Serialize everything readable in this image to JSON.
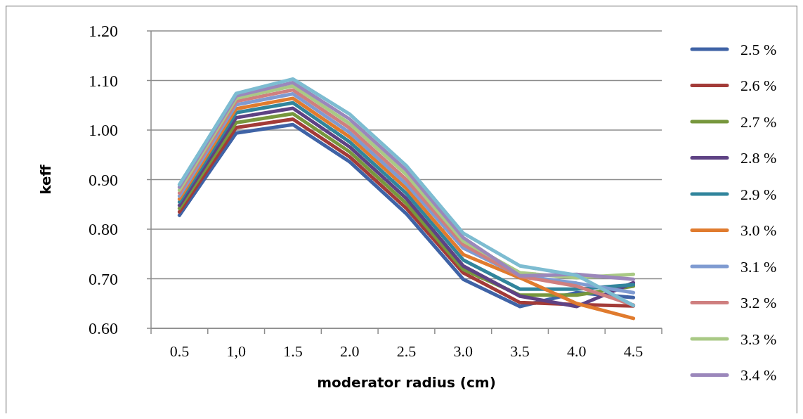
{
  "chart_data": {
    "type": "line",
    "xlabel": "moderator radius (cm)",
    "ylabel": "keff",
    "categories": [
      "0.5",
      "1,0",
      "1.5",
      "2.0",
      "2.5",
      "3.0",
      "3.5",
      "4.0",
      "4.5"
    ],
    "ylim": [
      0.6,
      1.2
    ],
    "yticks": [
      {
        "value": 0.6,
        "label": "0.60"
      },
      {
        "value": 0.7,
        "label": "0.70"
      },
      {
        "value": 0.8,
        "label": "0.80"
      },
      {
        "value": 0.9,
        "label": "0.90"
      },
      {
        "value": 1.0,
        "label": "1.00"
      },
      {
        "value": 1.1,
        "label": "1.10"
      },
      {
        "value": 1.2,
        "label": "1.20"
      }
    ],
    "grid": "y",
    "legend": "right",
    "marker": "none",
    "line_style": "solid",
    "series": [
      {
        "name": "2.5 %",
        "color": "#3f63a6",
        "values": [
          0.828,
          0.994,
          1.011,
          0.936,
          0.831,
          0.699,
          0.644,
          0.672,
          0.662
        ]
      },
      {
        "name": "2.6 %",
        "color": "#a33b38",
        "values": [
          0.835,
          1.005,
          1.022,
          0.946,
          0.842,
          0.712,
          0.652,
          0.648,
          0.645
        ]
      },
      {
        "name": "2.7 %",
        "color": "#77973d",
        "values": [
          0.842,
          1.015,
          1.033,
          0.956,
          0.852,
          0.719,
          0.667,
          0.667,
          0.685
        ]
      },
      {
        "name": "2.8 %",
        "color": "#5e4284",
        "values": [
          0.848,
          1.025,
          1.044,
          0.966,
          0.862,
          0.726,
          0.665,
          0.644,
          0.692
        ]
      },
      {
        "name": "2.9 %",
        "color": "#31859c",
        "values": [
          0.855,
          1.035,
          1.055,
          0.976,
          0.872,
          0.738,
          0.679,
          0.679,
          0.688
        ]
      },
      {
        "name": "3.0 %",
        "color": "#e07b2e",
        "values": [
          0.861,
          1.043,
          1.064,
          0.986,
          0.882,
          0.749,
          0.702,
          0.65,
          0.62
        ]
      },
      {
        "name": "3.1 %",
        "color": "#7f9bd1",
        "values": [
          0.867,
          1.051,
          1.073,
          0.995,
          0.891,
          0.762,
          0.706,
          0.691,
          0.672
        ]
      },
      {
        "name": "3.2 %",
        "color": "#cf7f7f",
        "values": [
          0.873,
          1.058,
          1.081,
          1.004,
          0.9,
          0.769,
          0.705,
          0.685,
          0.647
        ]
      },
      {
        "name": "3.3 %",
        "color": "#a9c985",
        "values": [
          0.879,
          1.064,
          1.089,
          1.013,
          0.91,
          0.776,
          0.712,
          0.702,
          0.709
        ]
      },
      {
        "name": "3.4 %",
        "color": "#9b87bb",
        "values": [
          0.885,
          1.069,
          1.096,
          1.022,
          0.919,
          0.783,
          0.706,
          0.709,
          0.699
        ]
      },
      {
        "color": "#7dbcd1",
        "values": [
          0.89,
          1.074,
          1.103,
          1.032,
          0.928,
          0.792,
          0.726,
          0.707,
          0.646
        ]
      }
    ]
  }
}
